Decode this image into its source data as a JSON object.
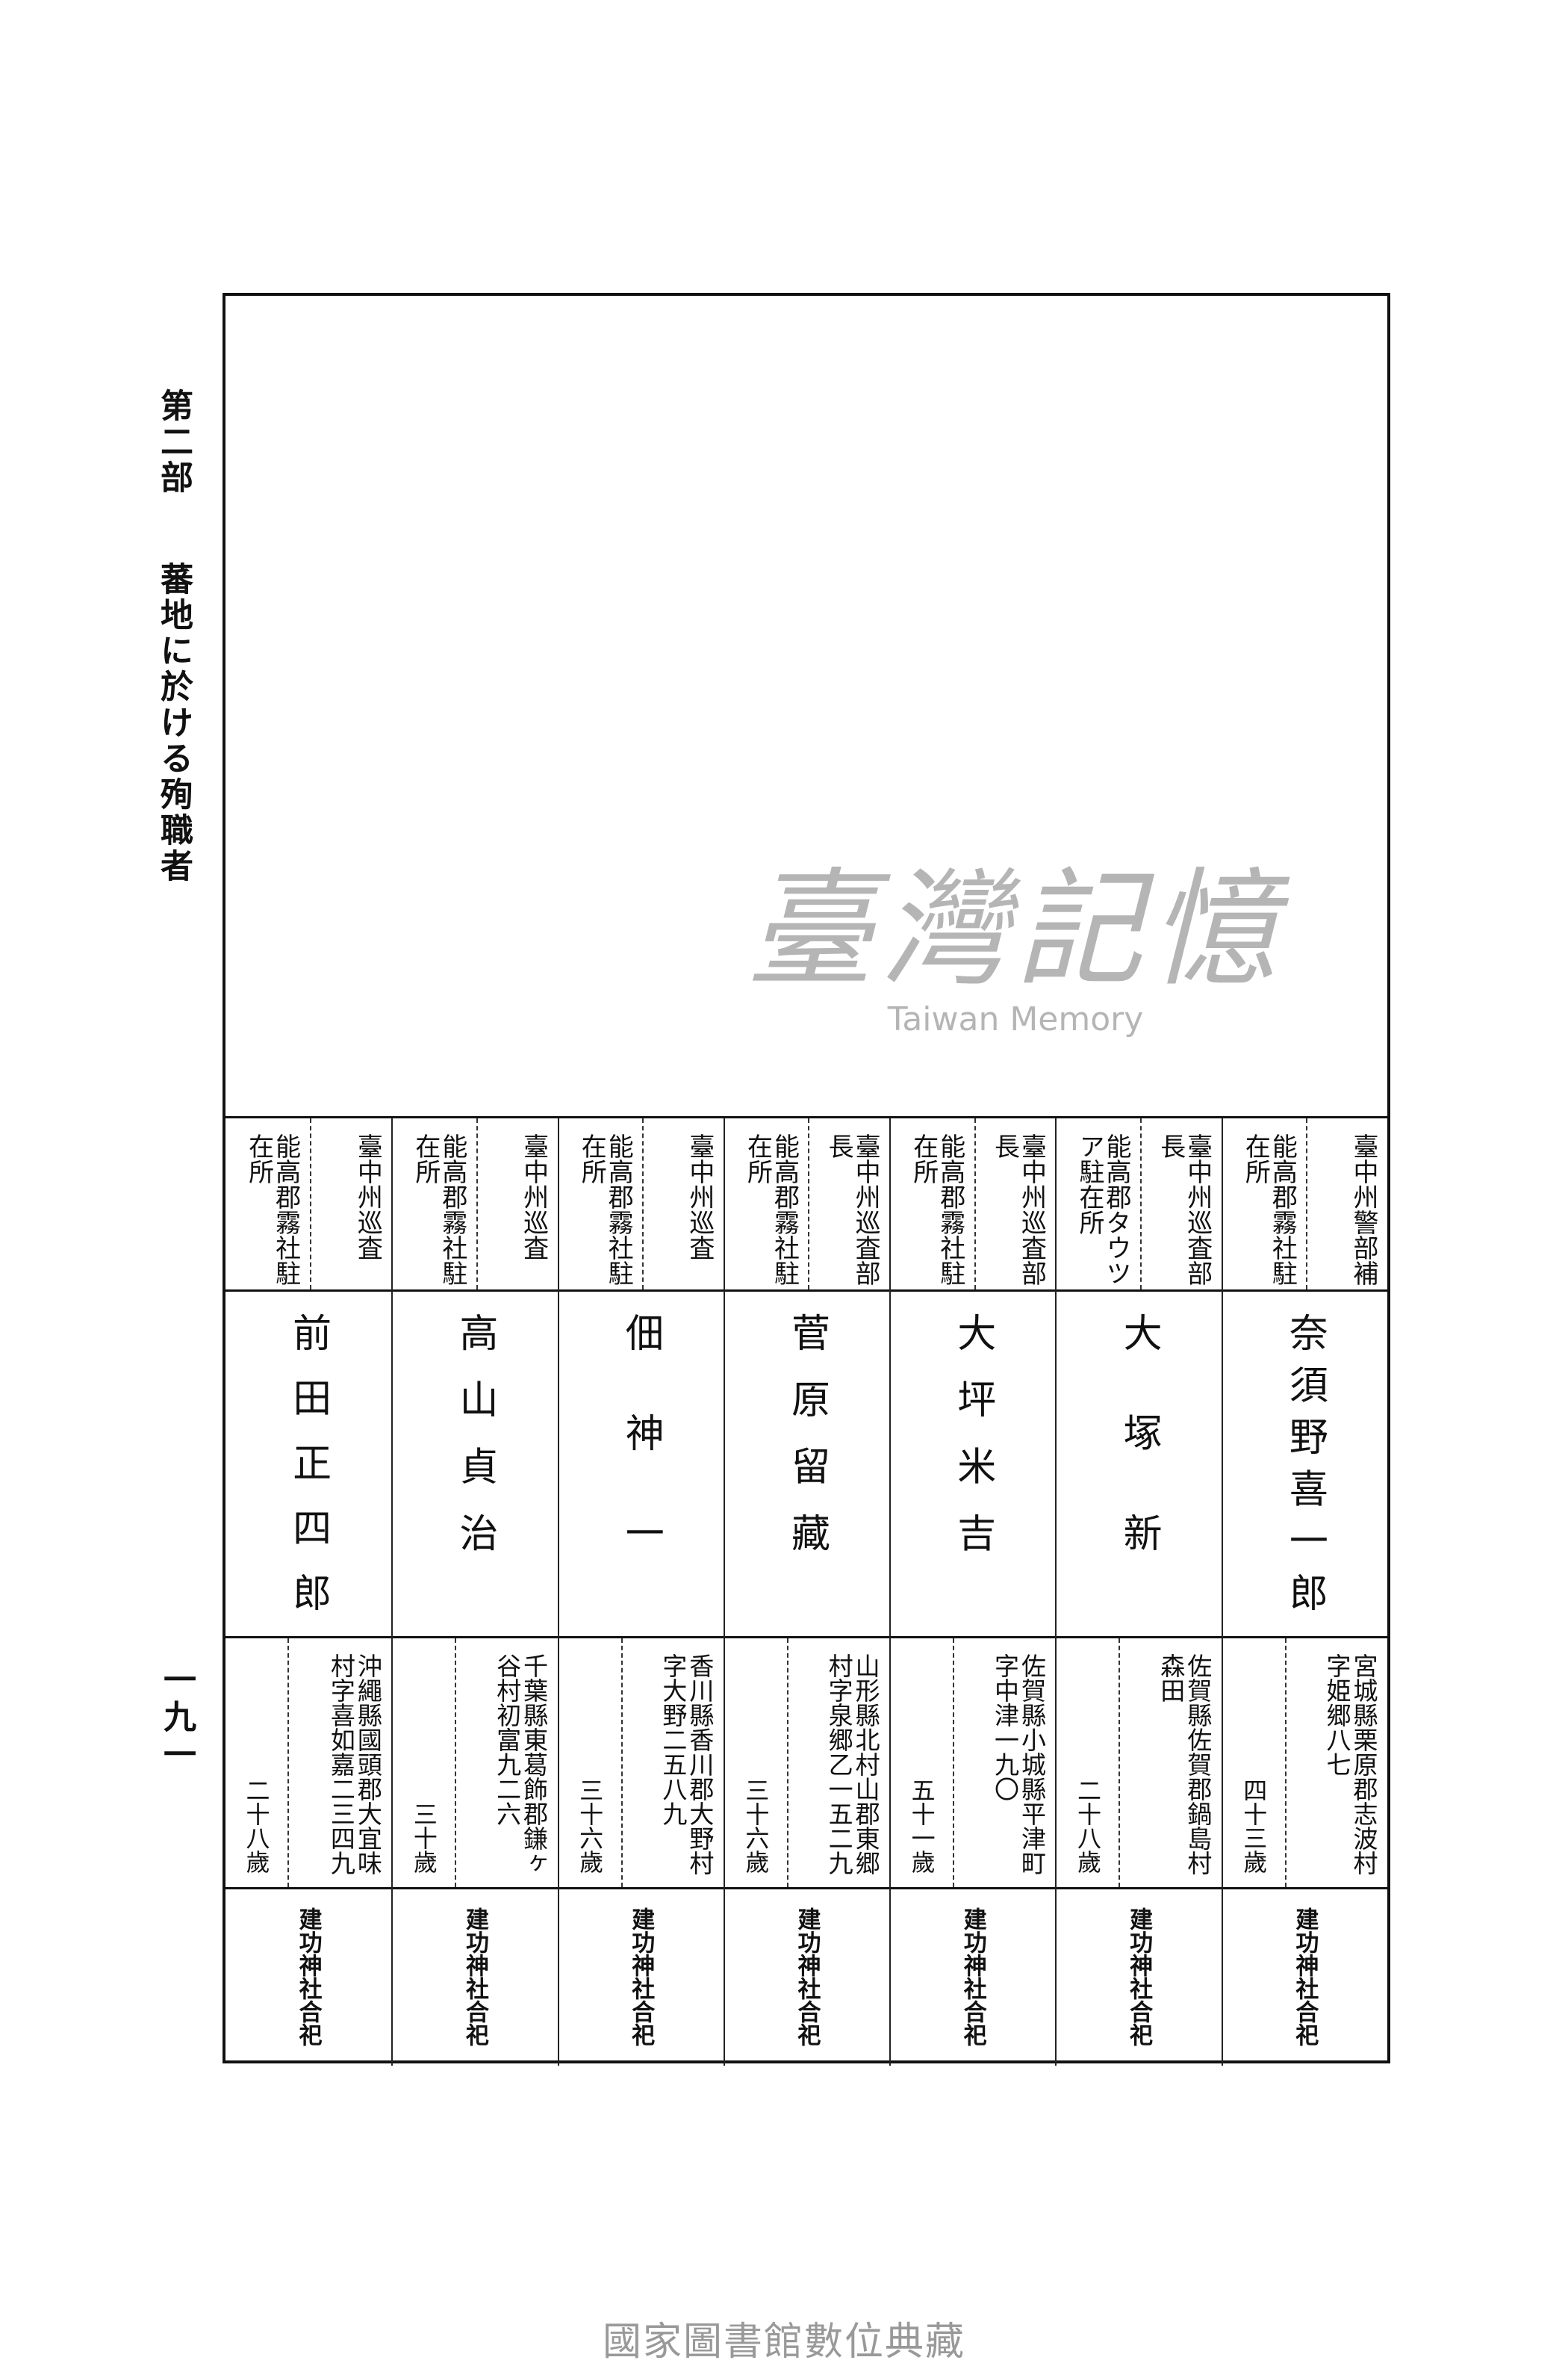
{
  "header": {
    "part": "第二部",
    "section_title": "蕃地に於ける殉職者"
  },
  "page_number": "一九一",
  "entries": [
    {
      "rank": "臺中州警部補",
      "office": "能高郡霧社駐在所",
      "name": "奈須野喜一郎",
      "address": "宮城縣栗原郡志波村字姫郷八七",
      "age": "四十三歲",
      "shrine": "建功神社合祀"
    },
    {
      "rank": "臺中州巡査部長",
      "office": "能高郡タウツア駐在所",
      "name": "大塚新",
      "address": "佐賀縣佐賀郡鍋島村森田",
      "age": "二十八歲",
      "shrine": "建功神社合祀"
    },
    {
      "rank": "臺中州巡査部長",
      "office": "能高郡霧社駐在所",
      "name": "大坪米吉",
      "address": "佐賀縣小城縣平津町字中津一九〇",
      "age": "五十一歲",
      "shrine": "建功神社合祀"
    },
    {
      "rank": "臺中州巡査部長",
      "office": "能高郡霧社駐在所",
      "name": "菅原留藏",
      "address": "山形縣北村山郡東郷村字泉郷乙一五二九",
      "age": "三十六歲",
      "shrine": "建功神社合祀"
    },
    {
      "rank": "臺中州巡査",
      "office": "能高郡霧社駐在所",
      "name": "佃神一",
      "address": "香川縣香川郡大野村字大野二五八九",
      "age": "三十六歲",
      "shrine": "建功神社合祀"
    },
    {
      "rank": "臺中州巡査",
      "office": "能高郡霧社駐在所",
      "name": "高山貞治",
      "address": "千葉縣東葛飾郡鎌ヶ谷村初富九二六",
      "age": "三十歲",
      "shrine": "建功神社合祀"
    },
    {
      "rank": "臺中州巡査",
      "office": "能高郡霧社駐在所",
      "name": "前田正四郎",
      "address": "沖繩縣國頭郡大宜味村字喜如嘉二三四九",
      "age": "二十八歲",
      "shrine": "建功神社合祀"
    }
  ],
  "watermark": {
    "chinese": "臺灣記憶",
    "english": "Taiwan Memory"
  },
  "footer": "國家圖書館數位典藏"
}
